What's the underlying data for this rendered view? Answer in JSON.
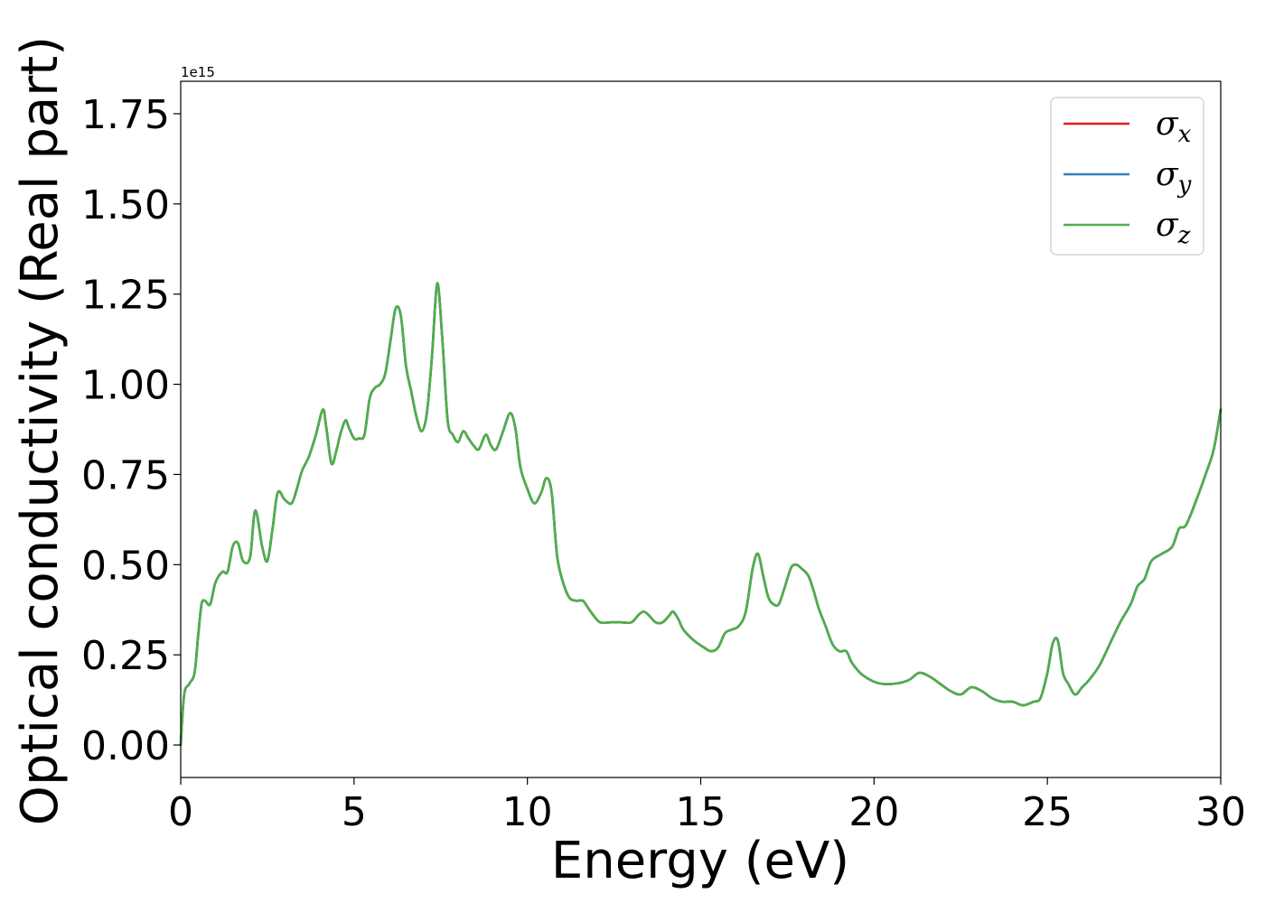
{
  "chart_data": {
    "type": "line",
    "title": "",
    "xlabel": "Energy (eV)",
    "ylabel": "Optical conductivity (Real part)",
    "y_offset_label": "1e15",
    "y_scale": 1000000000000000.0,
    "xlim": [
      0,
      30
    ],
    "ylim": [
      -0.09,
      1.84
    ],
    "xticks": [
      0,
      5,
      10,
      15,
      20,
      25,
      30
    ],
    "xtick_labels": [
      "0",
      "5",
      "10",
      "15",
      "20",
      "25",
      "30"
    ],
    "yticks": [
      0.0,
      0.25,
      0.5,
      0.75,
      1.0,
      1.25,
      1.5,
      1.75
    ],
    "ytick_labels": [
      "0.00",
      "0.25",
      "0.50",
      "0.75",
      "1.00",
      "1.25",
      "1.50",
      "1.75"
    ],
    "grid": false,
    "legend": "top-right",
    "x": [
      0,
      0.1,
      0.25,
      0.4,
      0.5,
      0.6,
      0.7,
      0.85,
      1.0,
      1.2,
      1.35,
      1.5,
      1.65,
      1.8,
      2.0,
      2.15,
      2.35,
      2.5,
      2.65,
      2.8,
      3.0,
      3.2,
      3.35,
      3.5,
      3.7,
      3.9,
      4.1,
      4.2,
      4.35,
      4.5,
      4.6,
      4.75,
      4.85,
      5.0,
      5.15,
      5.3,
      5.45,
      5.6,
      5.75,
      5.9,
      6.05,
      6.2,
      6.35,
      6.5,
      6.65,
      6.8,
      6.95,
      7.1,
      7.25,
      7.4,
      7.55,
      7.7,
      7.85,
      8.0,
      8.15,
      8.3,
      8.45,
      8.6,
      8.8,
      8.95,
      9.1,
      9.3,
      9.5,
      9.65,
      9.8,
      10.0,
      10.2,
      10.4,
      10.55,
      10.7,
      10.85,
      11.0,
      11.2,
      11.4,
      11.6,
      11.75,
      11.9,
      12.1,
      12.4,
      12.7,
      13.0,
      13.2,
      13.35,
      13.5,
      13.7,
      13.9,
      14.1,
      14.2,
      14.35,
      14.5,
      14.8,
      15.1,
      15.3,
      15.5,
      15.7,
      15.9,
      16.1,
      16.3,
      16.5,
      16.65,
      16.8,
      16.95,
      17.1,
      17.25,
      17.4,
      17.6,
      17.75,
      17.9,
      18.1,
      18.25,
      18.4,
      18.6,
      18.8,
      19.0,
      19.2,
      19.35,
      19.6,
      19.9,
      20.2,
      20.6,
      21.0,
      21.3,
      21.6,
      21.9,
      22.2,
      22.5,
      22.8,
      23.1,
      23.4,
      23.7,
      24.0,
      24.3,
      24.6,
      24.8,
      25.0,
      25.15,
      25.3,
      25.45,
      25.6,
      25.8,
      26.0,
      26.2,
      26.5,
      26.8,
      27.1,
      27.4,
      27.6,
      27.8,
      28.0,
      28.3,
      28.6,
      28.8,
      29.0,
      29.3,
      29.6,
      29.8,
      30.0
    ],
    "series": [
      {
        "name": "σx",
        "color": "#e41a1c",
        "values": [
          0.0,
          0.14,
          0.17,
          0.2,
          0.3,
          0.39,
          0.4,
          0.39,
          0.45,
          0.48,
          0.48,
          0.55,
          0.56,
          0.51,
          0.52,
          0.65,
          0.55,
          0.51,
          0.6,
          0.7,
          0.68,
          0.67,
          0.71,
          0.76,
          0.8,
          0.86,
          0.93,
          0.88,
          0.78,
          0.82,
          0.86,
          0.9,
          0.88,
          0.85,
          0.85,
          0.86,
          0.96,
          0.99,
          1.0,
          1.03,
          1.12,
          1.21,
          1.19,
          1.05,
          0.98,
          0.91,
          0.87,
          0.92,
          1.08,
          1.28,
          1.12,
          0.9,
          0.86,
          0.84,
          0.87,
          0.85,
          0.83,
          0.82,
          0.86,
          0.83,
          0.82,
          0.87,
          0.92,
          0.88,
          0.77,
          0.71,
          0.67,
          0.7,
          0.74,
          0.7,
          0.53,
          0.46,
          0.41,
          0.4,
          0.4,
          0.38,
          0.36,
          0.34,
          0.34,
          0.34,
          0.34,
          0.36,
          0.37,
          0.36,
          0.34,
          0.34,
          0.36,
          0.37,
          0.35,
          0.32,
          0.29,
          0.27,
          0.26,
          0.27,
          0.31,
          0.32,
          0.33,
          0.37,
          0.49,
          0.53,
          0.47,
          0.41,
          0.39,
          0.39,
          0.43,
          0.49,
          0.5,
          0.49,
          0.47,
          0.43,
          0.38,
          0.33,
          0.28,
          0.26,
          0.26,
          0.23,
          0.2,
          0.18,
          0.17,
          0.17,
          0.18,
          0.2,
          0.19,
          0.17,
          0.15,
          0.14,
          0.16,
          0.15,
          0.13,
          0.12,
          0.12,
          0.11,
          0.12,
          0.13,
          0.2,
          0.28,
          0.29,
          0.2,
          0.17,
          0.14,
          0.16,
          0.18,
          0.22,
          0.28,
          0.34,
          0.39,
          0.44,
          0.46,
          0.51,
          0.53,
          0.55,
          0.6,
          0.61,
          0.68,
          0.76,
          0.82,
          0.93
        ]
      },
      {
        "name": "σy",
        "color": "#377eb8",
        "values": [
          0.0,
          0.14,
          0.17,
          0.2,
          0.3,
          0.39,
          0.4,
          0.39,
          0.45,
          0.48,
          0.48,
          0.55,
          0.56,
          0.51,
          0.52,
          0.65,
          0.55,
          0.51,
          0.6,
          0.7,
          0.68,
          0.67,
          0.71,
          0.76,
          0.8,
          0.86,
          0.93,
          0.88,
          0.78,
          0.82,
          0.86,
          0.9,
          0.88,
          0.85,
          0.85,
          0.86,
          0.96,
          0.99,
          1.0,
          1.03,
          1.12,
          1.21,
          1.19,
          1.05,
          0.98,
          0.91,
          0.87,
          0.92,
          1.08,
          1.28,
          1.12,
          0.9,
          0.86,
          0.84,
          0.87,
          0.85,
          0.83,
          0.82,
          0.86,
          0.83,
          0.82,
          0.87,
          0.92,
          0.88,
          0.77,
          0.71,
          0.67,
          0.7,
          0.74,
          0.7,
          0.53,
          0.46,
          0.41,
          0.4,
          0.4,
          0.38,
          0.36,
          0.34,
          0.34,
          0.34,
          0.34,
          0.36,
          0.37,
          0.36,
          0.34,
          0.34,
          0.36,
          0.37,
          0.35,
          0.32,
          0.29,
          0.27,
          0.26,
          0.27,
          0.31,
          0.32,
          0.33,
          0.37,
          0.49,
          0.53,
          0.47,
          0.41,
          0.39,
          0.39,
          0.43,
          0.49,
          0.5,
          0.49,
          0.47,
          0.43,
          0.38,
          0.33,
          0.28,
          0.26,
          0.26,
          0.23,
          0.2,
          0.18,
          0.17,
          0.17,
          0.18,
          0.2,
          0.19,
          0.17,
          0.15,
          0.14,
          0.16,
          0.15,
          0.13,
          0.12,
          0.12,
          0.11,
          0.12,
          0.13,
          0.2,
          0.28,
          0.29,
          0.2,
          0.17,
          0.14,
          0.16,
          0.18,
          0.22,
          0.28,
          0.34,
          0.39,
          0.44,
          0.46,
          0.51,
          0.53,
          0.55,
          0.6,
          0.61,
          0.68,
          0.76,
          0.82,
          0.93
        ]
      },
      {
        "name": "σz",
        "color": "#4daf4a",
        "values": [
          0.0,
          0.14,
          0.17,
          0.2,
          0.3,
          0.39,
          0.4,
          0.39,
          0.45,
          0.48,
          0.48,
          0.55,
          0.56,
          0.51,
          0.52,
          0.65,
          0.55,
          0.51,
          0.6,
          0.7,
          0.68,
          0.67,
          0.71,
          0.76,
          0.8,
          0.86,
          0.93,
          0.88,
          0.78,
          0.82,
          0.86,
          0.9,
          0.88,
          0.85,
          0.85,
          0.86,
          0.96,
          0.99,
          1.0,
          1.03,
          1.12,
          1.21,
          1.19,
          1.05,
          0.98,
          0.91,
          0.87,
          0.92,
          1.08,
          1.28,
          1.12,
          0.9,
          0.86,
          0.84,
          0.87,
          0.85,
          0.83,
          0.82,
          0.86,
          0.83,
          0.82,
          0.87,
          0.92,
          0.88,
          0.77,
          0.71,
          0.67,
          0.7,
          0.74,
          0.7,
          0.53,
          0.46,
          0.41,
          0.4,
          0.4,
          0.38,
          0.36,
          0.34,
          0.34,
          0.34,
          0.34,
          0.36,
          0.37,
          0.36,
          0.34,
          0.34,
          0.36,
          0.37,
          0.35,
          0.32,
          0.29,
          0.27,
          0.26,
          0.27,
          0.31,
          0.32,
          0.33,
          0.37,
          0.49,
          0.53,
          0.47,
          0.41,
          0.39,
          0.39,
          0.43,
          0.49,
          0.5,
          0.49,
          0.47,
          0.43,
          0.38,
          0.33,
          0.28,
          0.26,
          0.26,
          0.23,
          0.2,
          0.18,
          0.17,
          0.17,
          0.18,
          0.2,
          0.19,
          0.17,
          0.15,
          0.14,
          0.16,
          0.15,
          0.13,
          0.12,
          0.12,
          0.11,
          0.12,
          0.13,
          0.2,
          0.28,
          0.29,
          0.2,
          0.17,
          0.14,
          0.16,
          0.18,
          0.22,
          0.28,
          0.34,
          0.39,
          0.44,
          0.46,
          0.51,
          0.53,
          0.55,
          0.6,
          0.61,
          0.68,
          0.76,
          0.82,
          0.93
        ]
      }
    ],
    "legend_entries": [
      {
        "symbol": "σ",
        "subscript": "x",
        "color": "#e41a1c"
      },
      {
        "symbol": "σ",
        "subscript": "y",
        "color": "#377eb8"
      },
      {
        "symbol": "σ",
        "subscript": "z",
        "color": "#4daf4a"
      }
    ]
  }
}
